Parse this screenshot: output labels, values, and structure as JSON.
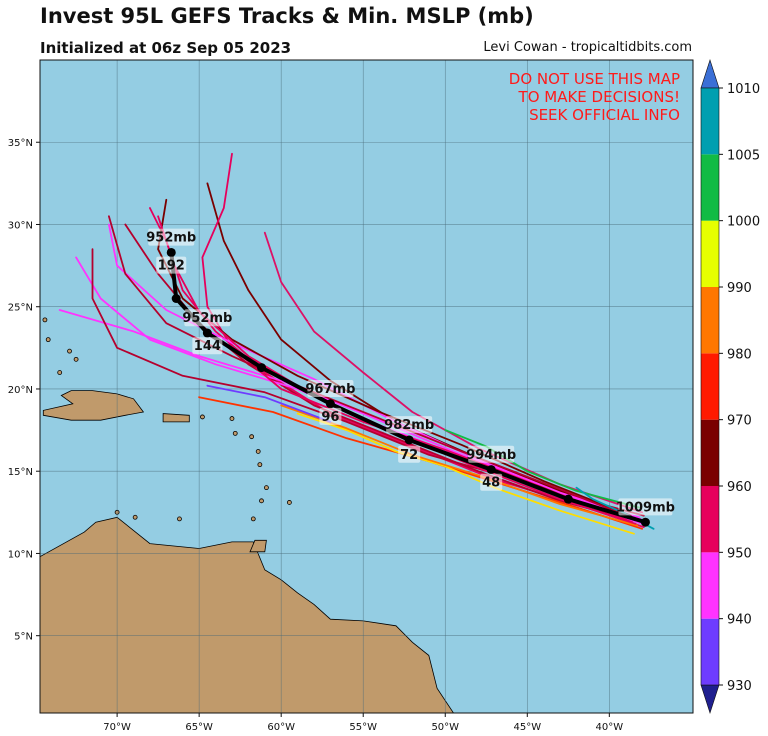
{
  "header": {
    "title": "Invest 95L GEFS Tracks & Min. MSLP (mb)",
    "subtitle": "Initialized at 06z Sep 05 2023",
    "credit": "Levi Cowan - tropicaltidbits.com"
  },
  "warning": [
    "DO NOT USE THIS MAP",
    "TO MAKE DECISIONS!",
    "SEEK OFFICIAL INFO"
  ],
  "colors": {
    "ocean": "#94cde3",
    "land": "#c09a6b",
    "grid": "#4a6a78",
    "mean_track": "#000000",
    "warning_text": "#ff1a1a"
  },
  "map_data": {
    "lon_range": [
      -74.7,
      -34.9
    ],
    "lat_range": [
      0.3,
      40.0
    ],
    "lon_ticks": [
      -70,
      -65,
      -60,
      -55,
      -50,
      -45,
      -40
    ],
    "lon_tick_labels": [
      "70°W",
      "65°W",
      "60°W",
      "55°W",
      "50°W",
      "45°W",
      "40°W"
    ],
    "lat_ticks": [
      5,
      10,
      15,
      20,
      25,
      30,
      35
    ],
    "lat_tick_labels": [
      "5°N",
      "10°N",
      "15°N",
      "20°N",
      "25°N",
      "30°N",
      "35°N"
    ],
    "mean_track": [
      {
        "lon": -37.8,
        "lat": 11.9
      },
      {
        "lon": -42.5,
        "lat": 13.3
      },
      {
        "lon": -47.2,
        "lat": 15.1
      },
      {
        "lon": -52.2,
        "lat": 16.9
      },
      {
        "lon": -57.0,
        "lat": 19.1
      },
      {
        "lon": -61.2,
        "lat": 21.3
      },
      {
        "lon": -64.5,
        "lat": 23.4
      },
      {
        "lon": -66.4,
        "lat": 25.5
      },
      {
        "lon": -66.7,
        "lat": 28.3
      }
    ],
    "annotations": [
      {
        "text": "1009mb",
        "lon": -37.8,
        "lat": 12.8
      },
      {
        "text": "994mb",
        "lon": -47.2,
        "lat": 16.0
      },
      {
        "text": "48",
        "lon": -47.2,
        "lat": 14.3
      },
      {
        "text": "982mb",
        "lon": -52.2,
        "lat": 17.8
      },
      {
        "text": "72",
        "lon": -52.2,
        "lat": 16.0
      },
      {
        "text": "967mb",
        "lon": -57.0,
        "lat": 20.0
      },
      {
        "text": "96",
        "lon": -57.0,
        "lat": 18.3
      },
      {
        "text": "952mb",
        "lon": -64.5,
        "lat": 24.3
      },
      {
        "text": "144",
        "lon": -64.5,
        "lat": 22.6
      },
      {
        "text": "952mb",
        "lon": -66.7,
        "lat": 29.2
      },
      {
        "text": "192",
        "lon": -66.7,
        "lat": 27.5
      }
    ],
    "ensemble_tracks": [
      {
        "color": "#e6005c",
        "points": [
          [
            -37.9,
            11.6
          ],
          [
            -42,
            13
          ],
          [
            -47,
            14.5
          ],
          [
            -52,
            16.5
          ],
          [
            -57,
            18.5
          ],
          [
            -61,
            21
          ],
          [
            -64,
            23.5
          ],
          [
            -66,
            26
          ],
          [
            -67,
            29
          ],
          [
            -68,
            31
          ]
        ]
      },
      {
        "color": "#b5002e",
        "points": [
          [
            -38.5,
            12
          ],
          [
            -43,
            13.2
          ],
          [
            -48,
            15
          ],
          [
            -53,
            17
          ],
          [
            -58,
            19
          ],
          [
            -62,
            21.5
          ],
          [
            -65,
            24
          ],
          [
            -67.5,
            27
          ],
          [
            -69.5,
            30
          ]
        ]
      },
      {
        "color": "#ff33ff",
        "points": [
          [
            -38,
            11.8
          ],
          [
            -43,
            13.5
          ],
          [
            -48,
            15.5
          ],
          [
            -54,
            17.8
          ],
          [
            -59,
            20
          ],
          [
            -64,
            21.5
          ],
          [
            -68,
            23
          ],
          [
            -71,
            25.5
          ],
          [
            -72.5,
            28
          ]
        ]
      },
      {
        "color": "#ff33ff",
        "points": [
          [
            -38.2,
            12.2
          ],
          [
            -43,
            13.6
          ],
          [
            -49,
            16
          ],
          [
            -55,
            18.5
          ],
          [
            -60,
            20.5
          ],
          [
            -65,
            22
          ],
          [
            -69,
            23.5
          ],
          [
            -73.5,
            24.8
          ]
        ]
      },
      {
        "color": "#7a0000",
        "points": [
          [
            -38,
            12
          ],
          [
            -43,
            13.8
          ],
          [
            -48,
            15.8
          ],
          [
            -53,
            18
          ],
          [
            -57,
            20.5
          ],
          [
            -60,
            23
          ],
          [
            -62,
            26
          ],
          [
            -63.5,
            29
          ],
          [
            -64.5,
            32.5
          ]
        ]
      },
      {
        "color": "#e6005c",
        "points": [
          [
            -38.6,
            11.9
          ],
          [
            -44,
            14
          ],
          [
            -50,
            16.3
          ],
          [
            -55,
            18
          ],
          [
            -60,
            20
          ],
          [
            -63,
            22.5
          ],
          [
            -64.5,
            25
          ],
          [
            -64.8,
            28
          ],
          [
            -63.5,
            31
          ],
          [
            -63,
            34.3
          ]
        ]
      },
      {
        "color": "#b5002e",
        "points": [
          [
            -37.9,
            12.3
          ],
          [
            -42,
            13.4
          ],
          [
            -46,
            14.6
          ],
          [
            -51,
            16
          ],
          [
            -56,
            18
          ],
          [
            -61,
            19.8
          ],
          [
            -66,
            20.8
          ],
          [
            -70,
            22.5
          ],
          [
            -71.5,
            25.5
          ],
          [
            -71.5,
            28.5
          ]
        ]
      },
      {
        "color": "#ff3300",
        "points": [
          [
            -38,
            11.5
          ],
          [
            -42,
            12.8
          ],
          [
            -46.5,
            14.2
          ],
          [
            -51,
            15.6
          ],
          [
            -56,
            17
          ],
          [
            -60.5,
            18.6
          ],
          [
            -65,
            19.5
          ]
        ]
      },
      {
        "color": "#ffdd00",
        "points": [
          [
            -38.5,
            11.2
          ],
          [
            -43,
            12.6
          ],
          [
            -47,
            14
          ],
          [
            -50,
            15.3
          ],
          [
            -53,
            16.2
          ],
          [
            -56,
            17.5
          ],
          [
            -59,
            18.5
          ]
        ]
      },
      {
        "color": "#ff7700",
        "points": [
          [
            -38.3,
            11.7
          ],
          [
            -43,
            13
          ],
          [
            -47.5,
            14.6
          ],
          [
            -52,
            16
          ],
          [
            -56,
            17.6
          ],
          [
            -60,
            19
          ]
        ]
      },
      {
        "color": "#dd1166",
        "points": [
          [
            -38,
            12.5
          ],
          [
            -43,
            14.2
          ],
          [
            -48,
            16.4
          ],
          [
            -52,
            18.6
          ],
          [
            -55,
            21
          ],
          [
            -58,
            23.5
          ],
          [
            -60,
            26.5
          ],
          [
            -61,
            29.5
          ]
        ]
      },
      {
        "color": "#ff33ff",
        "points": [
          [
            -38.1,
            12.1
          ],
          [
            -43,
            13.7
          ],
          [
            -48,
            15.7
          ],
          [
            -53,
            18
          ],
          [
            -58,
            20.6
          ],
          [
            -63,
            22.8
          ],
          [
            -67,
            24.8
          ],
          [
            -70,
            27.5
          ],
          [
            -70.5,
            30
          ]
        ]
      },
      {
        "color": "#7a0000",
        "points": [
          [
            -38.7,
            12.3
          ],
          [
            -44,
            14.4
          ],
          [
            -49,
            16.6
          ],
          [
            -54,
            18.6
          ],
          [
            -59,
            20.8
          ],
          [
            -63,
            23
          ],
          [
            -66,
            25.5
          ],
          [
            -67.5,
            28.5
          ],
          [
            -67,
            31.5
          ]
        ]
      },
      {
        "color": "#11bb44",
        "points": [
          [
            -38.2,
            12.8
          ],
          [
            -42,
            13.8
          ],
          [
            -45,
            15
          ],
          [
            -47.5,
            16.5
          ],
          [
            -50,
            17.5
          ]
        ]
      },
      {
        "color": "#009fb0",
        "points": [
          [
            -37.3,
            11.5
          ],
          [
            -39,
            12.4
          ],
          [
            -41,
            13.3
          ],
          [
            -42,
            14
          ]
        ]
      },
      {
        "color": "#6e3cff",
        "points": [
          [
            -57,
            18
          ],
          [
            -61,
            19.5
          ],
          [
            -64.5,
            20.2
          ]
        ]
      },
      {
        "color": "#e6005c",
        "points": [
          [
            -38.4,
            11.8
          ],
          [
            -43,
            13.3
          ],
          [
            -48,
            15.2
          ],
          [
            -53,
            17.3
          ],
          [
            -58,
            19.6
          ],
          [
            -62,
            22
          ],
          [
            -65,
            24.7
          ],
          [
            -66.5,
            27.5
          ],
          [
            -67.5,
            30.5
          ]
        ]
      },
      {
        "color": "#b5002e",
        "points": [
          [
            -38.2,
            12
          ],
          [
            -43,
            13.9
          ],
          [
            -49,
            16.2
          ],
          [
            -54,
            18.2
          ],
          [
            -59,
            20.2
          ],
          [
            -63,
            22
          ],
          [
            -67,
            24
          ],
          [
            -69.5,
            27
          ],
          [
            -70.5,
            30.5
          ]
        ]
      }
    ],
    "colorbar": {
      "levels": [
        930,
        940,
        950,
        960,
        970,
        980,
        990,
        1000,
        1005,
        1010
      ],
      "labels": [
        "930",
        "940",
        "950",
        "960",
        "970",
        "980",
        "990",
        "1000",
        "1005",
        "1010"
      ],
      "colors": [
        "#1f1f8f",
        "#6e3cff",
        "#ff33ff",
        "#e6005c",
        "#7a0000",
        "#ff1a00",
        "#ff7700",
        "#e6ff00",
        "#11bb44",
        "#009fb0",
        "#3b6fd6"
      ]
    }
  }
}
